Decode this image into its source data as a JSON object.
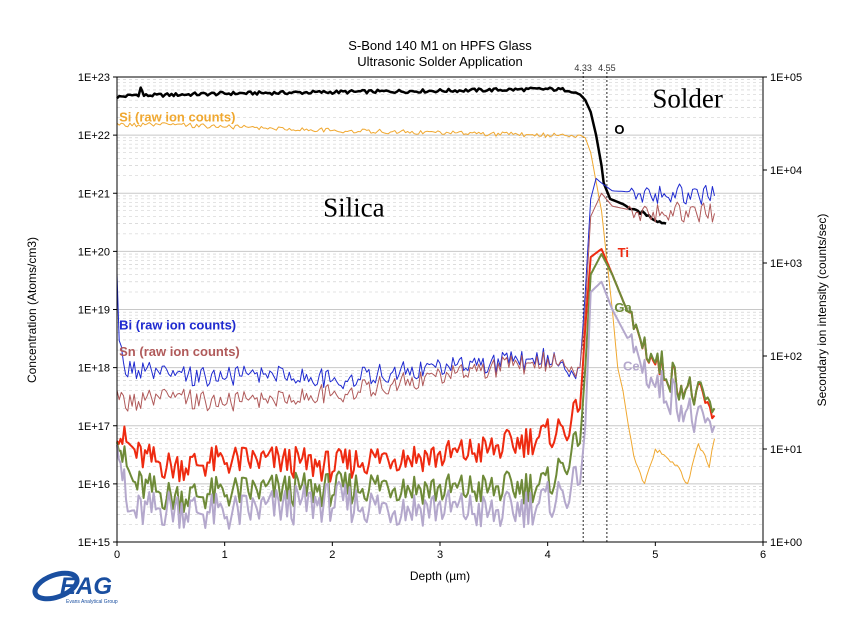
{
  "colors": {
    "O": "#000000",
    "Si": "#f0a830",
    "Bi": "#1f2ad0",
    "Sn": "#b05a5a",
    "Ti": "#ee2a10",
    "Ga": "#6e8a38",
    "Ce": "#b4a8cc",
    "grid": "#c8c8c8"
  },
  "chart_data": {
    "type": "line",
    "title": "S-Bond 140 M1 on HPFS Glass",
    "subtitle": "Ultrasonic Solder Application",
    "xlabel": "Depth (µm)",
    "ylabel": "Concentration (Atoms/cm3)",
    "y2label": "Secondary ion intensity (counts/sec)",
    "xlim": [
      0,
      6
    ],
    "ylim": [
      1000000000000000.0,
      1e+23
    ],
    "y2lim": [
      1,
      100000
    ],
    "yscale": "log",
    "y2scale": "log",
    "xticks": [
      "0",
      "1",
      "2",
      "3",
      "4",
      "5",
      "6"
    ],
    "yticks": [
      "1E+15",
      "1E+16",
      "1E+17",
      "1E+18",
      "1E+19",
      "1E+20",
      "1E+21",
      "1E+22",
      "1E+23"
    ],
    "y2ticks": [
      "1E+00",
      "1E+01",
      "1E+02",
      "1E+03",
      "1E+04",
      "1E+05"
    ],
    "grid": true,
    "vlines": [
      {
        "x": 4.33,
        "label": "4.33"
      },
      {
        "x": 4.55,
        "label": "4.55"
      }
    ],
    "regions": [
      {
        "label": "Silica",
        "x": 2.2,
        "y": 4e+20
      },
      {
        "label": "Solder",
        "x": 5.3,
        "y": 3e+22
      }
    ],
    "series": [
      {
        "name": "O",
        "axis": "left",
        "x": [
          0,
          0.2,
          0.22,
          0.25,
          1,
          2,
          3,
          3.5,
          4,
          4.2,
          4.3,
          4.35,
          4.4,
          4.45,
          4.5,
          4.52,
          4.58,
          4.7,
          4.8,
          4.9,
          5.0,
          5.1
        ],
        "y": [
          4.5e+22,
          5e+22,
          6.5e+22,
          4.8e+22,
          5.2e+22,
          5.5e+22,
          5.8e+22,
          6e+22,
          6.2e+22,
          6e+22,
          5e+22,
          4e+22,
          2.5e+22,
          1e+22,
          3e+21,
          1.5e+21,
          8e+20,
          6.5e+20,
          5e+20,
          4.5e+20,
          3.5e+20,
          3e+20
        ]
      },
      {
        "name": "Si (raw ion counts)",
        "axis": "left",
        "x": [
          0,
          0.5,
          1,
          2,
          3,
          4,
          4.3,
          4.35,
          4.4,
          4.5,
          4.6,
          4.65,
          4.7,
          4.75,
          4.8,
          4.9,
          5.0,
          5.1,
          5.2,
          5.3,
          5.4,
          5.5,
          5.55
        ],
        "y": [
          1.5e+22,
          1.5e+22,
          1.4e+22,
          1.2e+22,
          1.1e+22,
          1e+22,
          1e+22,
          9e+21,
          5e+21,
          5e+20,
          1e+19,
          1e+18,
          4e+17,
          1e+17,
          3e+16,
          1e+16,
          4e+16,
          3e+16,
          2e+16,
          1e+16,
          5e+16,
          2e+16,
          6e+16
        ]
      },
      {
        "name": "Bi (raw ion counts)",
        "axis": "left",
        "x": [
          0,
          0.02,
          0.06,
          0.5,
          1,
          1.5,
          2,
          2.5,
          3,
          3.5,
          4,
          4.2,
          4.3,
          4.35,
          4.4,
          4.45,
          4.5,
          4.6,
          5.0,
          5.55
        ],
        "y": [
          3e+19,
          3e+18,
          1e+18,
          7e+17,
          7e+17,
          8e+17,
          6e+17,
          8e+17,
          1e+18,
          1.2e+18,
          1.5e+18,
          9e+17,
          1e+18,
          2e+19,
          8e+20,
          1.8e+21,
          1.5e+21,
          1.1e+21,
          1e+21,
          9e+20
        ]
      },
      {
        "name": "Sn (raw ion counts)",
        "axis": "left",
        "x": [
          0,
          0.1,
          0.5,
          1,
          1.5,
          2,
          2.5,
          3,
          3.5,
          4,
          4.3,
          4.35,
          4.4,
          4.5,
          4.6,
          4.8,
          5.0,
          5.55
        ],
        "y": [
          3e+17,
          2.5e+17,
          3e+17,
          2.5e+17,
          3e+17,
          3.5e+17,
          5e+17,
          7e+17,
          1e+18,
          1.3e+18,
          1e+18,
          1e+19,
          4e+20,
          1e+21,
          6e+20,
          5e+20,
          4.8e+20,
          4.5e+20
        ]
      },
      {
        "name": "Ti",
        "axis": "left",
        "x": [
          0,
          0.05,
          0.2,
          0.5,
          1,
          1.5,
          2,
          2.5,
          3,
          3.5,
          4,
          4.2,
          4.3,
          4.35,
          4.4,
          4.5,
          4.6,
          4.8,
          5.0,
          5.2,
          5.4,
          5.55
        ],
        "y": [
          1e+17,
          6e+16,
          3e+16,
          2e+16,
          2.5e+16,
          2.5e+16,
          2e+16,
          3e+16,
          3e+16,
          4e+16,
          7e+16,
          1e+17,
          2e+17,
          5e+18,
          8e+19,
          1.1e+20,
          4e+19,
          5e+18,
          1.2e+18,
          6e+17,
          3e+17,
          1.5e+17
        ]
      },
      {
        "name": "Ga",
        "axis": "left",
        "x": [
          0,
          0.05,
          0.15,
          0.5,
          1,
          1.5,
          2,
          2.5,
          3,
          3.5,
          4,
          4.3,
          4.35,
          4.4,
          4.5,
          4.6,
          4.8,
          5.0,
          5.2,
          5.4,
          5.55
        ],
        "y": [
          1e+17,
          3e+16,
          1e+16,
          6000000000000000.0,
          7000000000000000.0,
          8000000000000000.0,
          8000000000000000.0,
          1e+16,
          8000000000000000.0,
          8000000000000000.0,
          1e+16,
          5e+16,
          1e+18,
          4e+19,
          9e+19,
          4e+19,
          5e+18,
          1.3e+18,
          6e+17,
          3e+17,
          2e+17
        ]
      },
      {
        "name": "Ce",
        "axis": "left",
        "x": [
          0,
          0.05,
          0.1,
          0.5,
          1,
          1.5,
          2,
          2.5,
          3,
          3.5,
          4,
          4.3,
          4.35,
          4.4,
          4.5,
          4.6,
          4.8,
          5.0,
          5.2,
          5.4,
          5.55
        ],
        "y": [
          1e+17,
          1.5e+16,
          3000000000000000.0,
          4000000000000000.0,
          3000000000000000.0,
          4000000000000000.0,
          5000000000000000.0,
          4000000000000000.0,
          4000000000000000.0,
          3000000000000000.0,
          5000000000000000.0,
          1e+16,
          1e+17,
          2e+19,
          3e+19,
          1e+19,
          2e+18,
          5e+17,
          3e+17,
          1e+17,
          1e+17
        ]
      }
    ],
    "labels": [
      {
        "series": "Si (raw ion counts)",
        "text": "Si (raw ion counts)",
        "x": 0.02,
        "y": 1.7e+22
      },
      {
        "series": "O",
        "text": "O",
        "x": 4.62,
        "y": 1.05e+22
      },
      {
        "series": "Bi (raw ion counts)",
        "text": "Bi (raw ion counts)",
        "x": 0.02,
        "y": 4.5e+18
      },
      {
        "series": "Sn (raw ion counts)",
        "text": "Sn (raw ion counts)",
        "x": 0.02,
        "y": 1.6e+18
      },
      {
        "series": "Ti",
        "text": "Ti",
        "x": 4.65,
        "y": 8e+19
      },
      {
        "series": "Ga",
        "text": "Ga",
        "x": 4.62,
        "y": 9e+18
      },
      {
        "series": "Ce",
        "text": "Ce",
        "x": 4.7,
        "y": 9e+17
      }
    ]
  },
  "logo": {
    "text": "EAG",
    "tagline": "Evans Analytical Group"
  }
}
